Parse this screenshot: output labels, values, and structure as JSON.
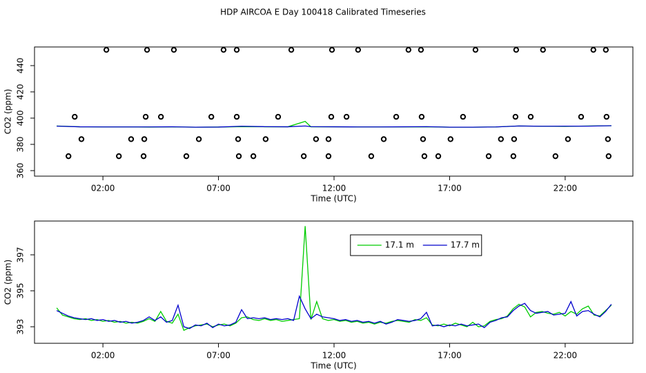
{
  "title": "HDP AIRCOA E  Day 100418  Calibrated Timeseries",
  "chart_data": [
    {
      "type": "scatter",
      "xlabel": "Time (UTC)",
      "ylabel": "CO2 (ppm)",
      "xlim": [
        -0.96,
        24.93
      ],
      "ylim": [
        355.8,
        454.2
      ],
      "xticks": [
        {
          "value": 2,
          "label": "02:00"
        },
        {
          "value": 7,
          "label": "07:00"
        },
        {
          "value": 12,
          "label": "12:00"
        },
        {
          "value": 17,
          "label": "17:00"
        },
        {
          "value": 22,
          "label": "22:00"
        }
      ],
      "yticks": [
        360,
        380,
        400,
        420,
        440
      ],
      "series": [
        {
          "type": "scatter",
          "color": "#000000",
          "x": [
            2.15,
            3.91,
            5.07,
            7.22,
            7.79,
            10.15,
            11.91,
            13.04,
            15.22,
            15.76,
            18.12,
            19.88,
            21.04,
            23.22,
            23.76,
            0.78,
            3.85,
            4.51,
            6.69,
            7.79,
            9.58,
            11.88,
            12.54,
            14.69,
            15.79,
            17.58,
            19.85,
            20.51,
            22.69,
            23.79,
            1.07,
            3.22,
            3.79,
            6.15,
            7.85,
            9.04,
            11.22,
            11.76,
            14.15,
            15.85,
            17.04,
            19.22,
            19.79,
            22.12,
            23.85,
            0.51,
            2.69,
            3.76,
            5.61,
            7.88,
            8.51,
            10.69,
            11.76,
            13.61,
            15.91,
            16.51,
            18.69,
            19.76,
            21.58,
            23.88
          ],
          "values": [
            452,
            452,
            452,
            452,
            452,
            452,
            452,
            452,
            452,
            452,
            452,
            452,
            452,
            452,
            452,
            401,
            401,
            401,
            401,
            401,
            401,
            401,
            401,
            401,
            401,
            401,
            401,
            401,
            401,
            401,
            384,
            384,
            384,
            384,
            384,
            384,
            384,
            384,
            384,
            384,
            384,
            384,
            384,
            384,
            384,
            371,
            371,
            371,
            371,
            371,
            371,
            371,
            371,
            371,
            371,
            371,
            371,
            371,
            371,
            371
          ]
        },
        {
          "type": "line",
          "color": "#00cc00",
          "x": [
            0,
            1,
            2,
            3,
            4,
            5,
            6,
            7,
            8,
            9,
            10,
            10.75,
            11,
            12,
            13,
            14,
            15,
            16,
            17,
            18,
            19,
            20,
            21,
            22,
            23,
            24
          ],
          "values": [
            394.0,
            393.4,
            393.3,
            393.3,
            393.2,
            393.3,
            393.1,
            393.2,
            393.5,
            393.4,
            393.4,
            397.5,
            393.4,
            393.4,
            393.3,
            393.3,
            393.3,
            393.4,
            393.1,
            393.1,
            393.3,
            394.0,
            393.8,
            393.7,
            394.0,
            394.2
          ]
        },
        {
          "type": "line",
          "color": "#0000cc",
          "x": [
            0,
            1,
            2,
            3,
            4,
            5,
            6,
            7,
            8,
            9,
            10,
            10.75,
            11,
            12,
            13,
            14,
            15,
            16,
            17,
            18,
            19,
            20,
            21,
            22,
            23,
            24
          ],
          "values": [
            393.9,
            393.4,
            393.3,
            393.3,
            393.3,
            393.4,
            393.1,
            393.2,
            393.8,
            393.5,
            393.4,
            394.0,
            393.5,
            393.4,
            393.3,
            393.3,
            393.4,
            393.5,
            393.1,
            393.1,
            393.3,
            394.0,
            393.8,
            393.9,
            393.9,
            394.2
          ]
        }
      ]
    },
    {
      "type": "line",
      "xlabel": "Time (UTC)",
      "ylabel": "CO2 (ppm)",
      "xlim": [
        -0.96,
        24.93
      ],
      "ylim": [
        392.08,
        398.88
      ],
      "xticks": [
        {
          "value": 2,
          "label": "02:00"
        },
        {
          "value": 7,
          "label": "07:00"
        },
        {
          "value": 12,
          "label": "12:00"
        },
        {
          "value": 17,
          "label": "17:00"
        },
        {
          "value": 22,
          "label": "22:00"
        }
      ],
      "yticks": [
        393,
        395,
        397
      ],
      "legend": "top",
      "x": [
        0,
        0.25,
        0.5,
        0.75,
        1,
        1.25,
        1.5,
        1.75,
        2,
        2.25,
        2.5,
        2.75,
        3,
        3.25,
        3.5,
        3.75,
        4,
        4.25,
        4.5,
        4.75,
        5,
        5.25,
        5.5,
        5.75,
        6,
        6.25,
        6.5,
        6.75,
        7,
        7.25,
        7.5,
        7.75,
        8,
        8.25,
        8.5,
        8.75,
        9,
        9.25,
        9.5,
        9.75,
        10,
        10.25,
        10.5,
        10.75,
        11,
        11.25,
        11.5,
        11.75,
        12,
        12.25,
        12.5,
        12.75,
        13,
        13.25,
        13.5,
        13.75,
        14,
        14.25,
        14.5,
        14.75,
        15,
        15.25,
        15.5,
        15.75,
        16,
        16.25,
        16.5,
        16.75,
        17,
        17.25,
        17.5,
        17.75,
        18,
        18.25,
        18.5,
        18.75,
        19,
        19.25,
        19.5,
        19.75,
        20,
        20.25,
        20.5,
        20.75,
        21,
        21.25,
        21.5,
        21.75,
        22,
        22.25,
        22.5,
        22.75,
        23,
        23.25,
        23.5,
        23.75,
        24
      ],
      "series": [
        {
          "name": "17.1 m",
          "color": "#00cc00",
          "values": [
            394.05,
            393.65,
            393.55,
            393.45,
            393.4,
            393.45,
            393.35,
            393.4,
            393.3,
            393.35,
            393.25,
            393.3,
            393.2,
            393.25,
            393.2,
            393.3,
            393.45,
            393.3,
            393.85,
            393.3,
            393.2,
            393.7,
            392.8,
            392.95,
            393.05,
            393.1,
            393.15,
            393.0,
            393.1,
            393.15,
            393.05,
            393.2,
            393.5,
            393.55,
            393.4,
            393.35,
            393.45,
            393.35,
            393.4,
            393.3,
            393.35,
            393.4,
            393.45,
            398.6,
            393.4,
            394.4,
            393.45,
            393.35,
            393.4,
            393.3,
            393.35,
            393.25,
            393.3,
            393.2,
            393.25,
            393.15,
            393.25,
            393.2,
            393.3,
            393.35,
            393.3,
            393.25,
            393.4,
            393.35,
            393.5,
            393.1,
            393.05,
            393.15,
            393.05,
            393.2,
            393.1,
            393.0,
            393.25,
            393.0,
            393.05,
            393.3,
            393.4,
            393.45,
            393.6,
            394.0,
            394.25,
            394.1,
            393.55,
            393.8,
            393.85,
            393.75,
            393.7,
            393.8,
            393.6,
            393.85,
            393.7,
            394.0,
            394.15,
            393.65,
            393.6,
            393.9,
            394.2
          ]
        },
        {
          "name": "17.7 m",
          "color": "#0000cc",
          "values": [
            393.9,
            393.75,
            393.6,
            393.5,
            393.45,
            393.4,
            393.45,
            393.35,
            393.4,
            393.3,
            393.35,
            393.25,
            393.3,
            393.2,
            393.25,
            393.35,
            393.55,
            393.35,
            393.55,
            393.25,
            393.35,
            394.2,
            393.0,
            392.9,
            393.1,
            393.05,
            393.2,
            392.95,
            393.15,
            393.05,
            393.1,
            393.25,
            393.95,
            393.45,
            393.5,
            393.45,
            393.5,
            393.4,
            393.45,
            393.4,
            393.45,
            393.35,
            394.7,
            394.0,
            393.45,
            393.7,
            393.55,
            393.5,
            393.45,
            393.35,
            393.4,
            393.3,
            393.35,
            393.25,
            393.3,
            393.2,
            393.3,
            393.15,
            393.25,
            393.4,
            393.35,
            393.3,
            393.35,
            393.45,
            393.8,
            393.05,
            393.1,
            393.0,
            393.1,
            393.05,
            393.15,
            393.05,
            393.1,
            393.15,
            392.95,
            393.25,
            393.35,
            393.5,
            393.55,
            393.9,
            394.15,
            394.3,
            393.9,
            393.75,
            393.8,
            393.85,
            393.65,
            393.7,
            393.75,
            394.4,
            393.6,
            393.85,
            393.9,
            393.7,
            393.55,
            393.85,
            394.25
          ]
        }
      ]
    }
  ]
}
